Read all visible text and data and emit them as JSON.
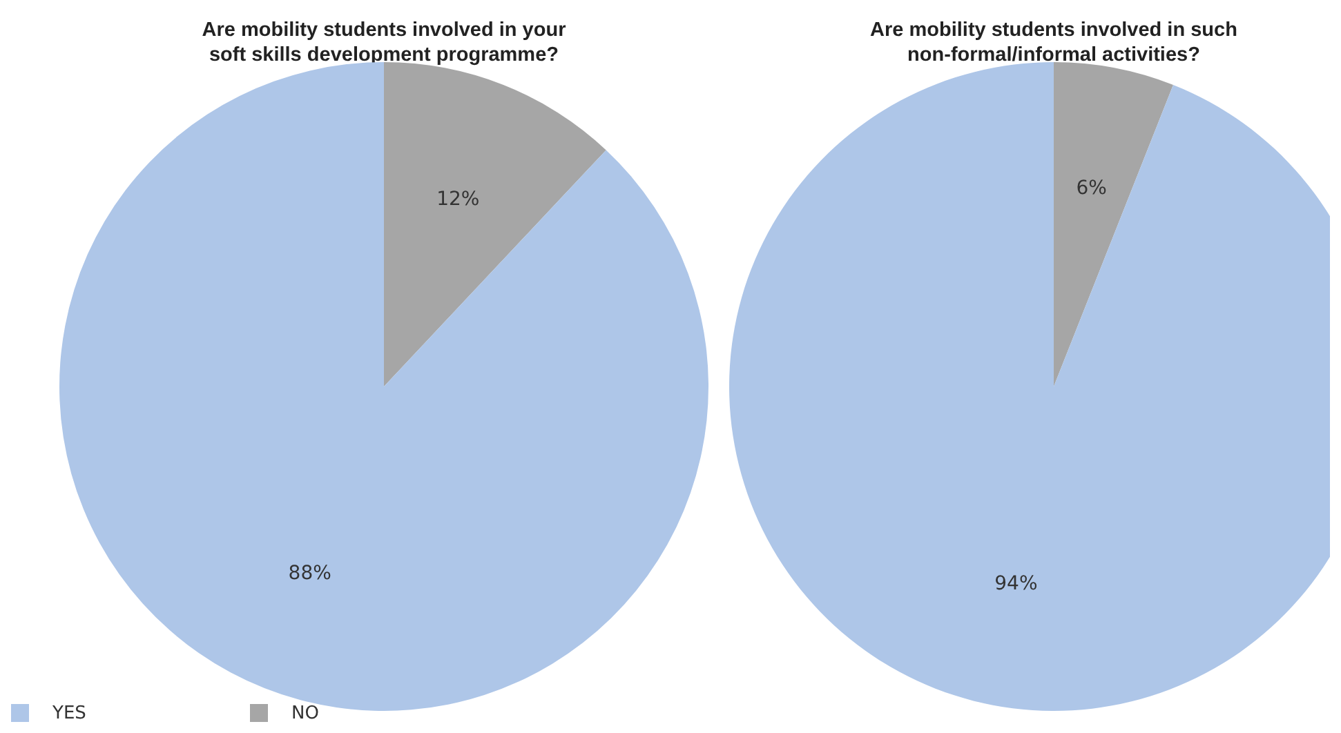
{
  "chart_data": [
    {
      "type": "pie",
      "title": "Are mobility students involved in your\nsoft skills development programme?",
      "categories": [
        "YES",
        "NO"
      ],
      "values": [
        88,
        12
      ],
      "value_labels": [
        "88%",
        "12%"
      ],
      "data_labels": true,
      "colors": [
        "#aec6e8",
        "#a6a6a6"
      ],
      "legend": "bottom left"
    },
    {
      "type": "pie",
      "title": "Are mobility students involved in such\nnon-formal/informal activities?",
      "categories": [
        null,
        null
      ],
      "values": [
        94,
        6
      ],
      "value_labels": [
        "94%",
        "6%"
      ],
      "data_labels": true,
      "colors": [
        "#aec6e8",
        "#a6a6a6"
      ],
      "legend": false
    }
  ]
}
